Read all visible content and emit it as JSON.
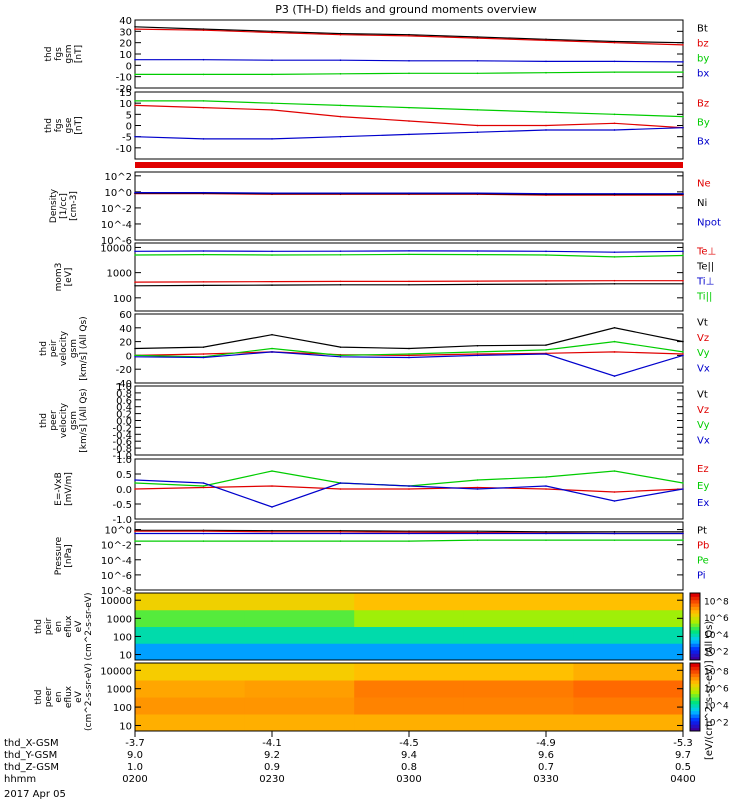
{
  "figure": {
    "title": "P3 (TH-D) fields and ground moments overview",
    "date_label": "2017 Apr 05",
    "colorbar_label": "[eV/(cm^2-s-sr-eV)] (All Qs)",
    "orbit_labels": [
      "thd_X-GSM",
      "thd_Y-GSM",
      "thd_Z-GSM",
      "hhmm"
    ],
    "orbit_values": [
      [
        "-3.7",
        "-4.1",
        "-4.5",
        "-4.9",
        "-5.3"
      ],
      [
        "9.0",
        "9.2",
        "9.4",
        "9.6",
        "9.7"
      ],
      [
        "1.0",
        "0.9",
        "0.8",
        "0.7",
        "0.5"
      ],
      [
        "0200",
        "0230",
        "0300",
        "0330",
        "0400"
      ]
    ]
  },
  "colors": {
    "black": "#000000",
    "red": "#e00000",
    "green": "#00cc00",
    "blue": "#0000cc"
  },
  "chart_data": [
    {
      "type": "line",
      "ylabel": [
        "thd",
        "fgs",
        "gsm",
        "[nT]"
      ],
      "yticks": [
        "40",
        "30",
        "20",
        "10",
        "0",
        "-10",
        "-20"
      ],
      "ylim": [
        -20,
        40
      ],
      "x": [
        "0200",
        "0215",
        "0230",
        "0245",
        "0300",
        "0315",
        "0330",
        "0345",
        "0400"
      ],
      "series": [
        {
          "name": "Bt",
          "color": "#000000",
          "values": [
            34,
            32,
            30,
            28,
            27,
            25,
            23,
            21,
            20
          ]
        },
        {
          "name": "bz",
          "color": "#e00000",
          "values": [
            32,
            31,
            29,
            27,
            26,
            24,
            22,
            20,
            18
          ]
        },
        {
          "name": "by",
          "color": "#00cc00",
          "values": [
            -8,
            -8,
            -8,
            -7.5,
            -7,
            -7,
            -6.5,
            -6,
            -6
          ]
        },
        {
          "name": "bx",
          "color": "#0000cc",
          "values": [
            5,
            5,
            4.5,
            4.5,
            4,
            4,
            3.5,
            3.5,
            3
          ]
        }
      ]
    },
    {
      "type": "line",
      "ylabel": [
        "thd",
        "fgs",
        "gse",
        "[nT]"
      ],
      "yticks": [
        "15",
        "10",
        "5",
        "0",
        "-5",
        "-10"
      ],
      "ylim": [
        -15,
        15
      ],
      "x": [
        "0200",
        "0215",
        "0230",
        "0245",
        "0300",
        "0315",
        "0330",
        "0345",
        "0400"
      ],
      "series": [
        {
          "name": "Bz",
          "color": "#e00000",
          "values": [
            9,
            8,
            7,
            4,
            2,
            0,
            0,
            1,
            -1
          ]
        },
        {
          "name": "By",
          "color": "#00cc00",
          "values": [
            11,
            11,
            10,
            9,
            8,
            7,
            6,
            5,
            4
          ]
        },
        {
          "name": "Bx",
          "color": "#0000cc",
          "values": [
            -5,
            -6,
            -6,
            -5,
            -4,
            -3,
            -2,
            -2,
            -1
          ]
        }
      ]
    },
    {
      "type": "line",
      "ylabel": [
        "Density",
        "[1/cc]",
        "[cm-3]"
      ],
      "yticks": [
        "10^2",
        "10^0",
        "10^-2",
        "10^-4",
        "10^-6"
      ],
      "yscale": "log",
      "ylim": [
        1e-06,
        300
      ],
      "x": [
        "0200",
        "0215",
        "0230",
        "0245",
        "0300",
        "0315",
        "0330",
        "0345",
        "0400"
      ],
      "series": [
        {
          "name": "Ne",
          "color": "#e00000",
          "values": [
            0.6,
            0.6,
            0.5,
            0.5,
            0.5,
            0.5,
            0.4,
            0.4,
            0.4
          ]
        },
        {
          "name": "Ni",
          "color": "#000000",
          "values": [
            0.7,
            0.7,
            0.6,
            0.6,
            0.6,
            0.6,
            0.5,
            0.5,
            0.5
          ]
        },
        {
          "name": "Npot",
          "color": "#0000cc",
          "values": [
            0.8,
            0.8,
            0.7,
            0.7,
            0.7,
            0.7,
            0.6,
            0.6,
            0.6
          ]
        }
      ]
    },
    {
      "type": "line",
      "ylabel": [
        "mom3",
        "[eV]"
      ],
      "yticks": [
        "10000",
        "1000",
        "100"
      ],
      "yscale": "log",
      "ylim": [
        30,
        15000
      ],
      "x": [
        "0200",
        "0215",
        "0230",
        "0245",
        "0300",
        "0315",
        "0330",
        "0345",
        "0400"
      ],
      "series": [
        {
          "name": "Te⊥",
          "color": "#e00000",
          "values": [
            420,
            430,
            440,
            450,
            450,
            460,
            470,
            480,
            480
          ]
        },
        {
          "name": "Te||",
          "color": "#000000",
          "values": [
            300,
            310,
            320,
            330,
            330,
            340,
            350,
            360,
            360
          ]
        },
        {
          "name": "Ti⊥",
          "color": "#0000cc",
          "values": [
            7000,
            7200,
            7000,
            7100,
            7300,
            7200,
            7000,
            6500,
            7000
          ]
        },
        {
          "name": "Ti||",
          "color": "#00cc00",
          "values": [
            5000,
            5200,
            5000,
            5100,
            5300,
            5200,
            5000,
            4200,
            4800
          ]
        }
      ]
    },
    {
      "type": "line",
      "ylabel": [
        "thd",
        "peir",
        "velocity",
        "gsm",
        "[km/s] (All Qs)"
      ],
      "yticks": [
        "60",
        "40",
        "20",
        "0",
        "-20",
        "-40"
      ],
      "ylim": [
        -40,
        60
      ],
      "x": [
        "0200",
        "0215",
        "0230",
        "0245",
        "0300",
        "0315",
        "0330",
        "0345",
        "0400"
      ],
      "series": [
        {
          "name": "Vt",
          "color": "#000000",
          "values": [
            10,
            12,
            30,
            12,
            10,
            14,
            15,
            40,
            20
          ]
        },
        {
          "name": "Vz",
          "color": "#e00000",
          "values": [
            0,
            2,
            5,
            1,
            0,
            2,
            3,
            5,
            2
          ]
        },
        {
          "name": "Vy",
          "color": "#00cc00",
          "values": [
            0,
            -2,
            10,
            0,
            2,
            5,
            8,
            20,
            5
          ]
        },
        {
          "name": "Vx",
          "color": "#0000cc",
          "values": [
            -2,
            -3,
            5,
            -2,
            -3,
            0,
            2,
            -30,
            0
          ]
        }
      ]
    },
    {
      "type": "line",
      "ylabel": [
        "thd",
        "peer",
        "velocity",
        "gsm",
        "[km/s] (All Qs)"
      ],
      "yticks": [
        "1.0",
        "0.8",
        "0.6",
        "0.4",
        "0.2",
        "0.0",
        "-0.2",
        "-0.4",
        "-0.6",
        "-0.8",
        "-1.0"
      ],
      "ylim": [
        -1,
        1
      ],
      "x": [],
      "series": [
        {
          "name": "Vt",
          "color": "#000000",
          "values": []
        },
        {
          "name": "Vz",
          "color": "#e00000",
          "values": []
        },
        {
          "name": "Vy",
          "color": "#00cc00",
          "values": []
        },
        {
          "name": "Vx",
          "color": "#0000cc",
          "values": []
        }
      ]
    },
    {
      "type": "line",
      "ylabel": [
        "E=-VxB",
        "[mV/m]"
      ],
      "yticks": [
        "1.0",
        "0.5",
        "0.0",
        "-0.5",
        "-1.0"
      ],
      "ylim": [
        -1,
        1
      ],
      "x": [
        "0200",
        "0215",
        "0230",
        "0245",
        "0300",
        "0315",
        "0330",
        "0345",
        "0400"
      ],
      "series": [
        {
          "name": "Ez",
          "color": "#e00000",
          "values": [
            0,
            0.05,
            0.1,
            0,
            0,
            0.05,
            0,
            -0.1,
            0
          ]
        },
        {
          "name": "Ey",
          "color": "#00cc00",
          "values": [
            0.2,
            0.1,
            0.6,
            0.2,
            0.1,
            0.3,
            0.4,
            0.6,
            0.2
          ]
        },
        {
          "name": "Ex",
          "color": "#0000cc",
          "values": [
            0.3,
            0.2,
            -0.6,
            0.2,
            0.1,
            0,
            0.1,
            -0.4,
            0
          ]
        }
      ]
    },
    {
      "type": "line",
      "ylabel": [
        "Pressure",
        "[nPa]"
      ],
      "yticks": [
        "10^0",
        "10^-2",
        "10^-4",
        "10^-6",
        "10^-8"
      ],
      "yscale": "log",
      "ylim": [
        1e-08,
        10
      ],
      "x": [
        "0200",
        "0215",
        "0230",
        "0245",
        "0300",
        "0315",
        "0330",
        "0345",
        "0400"
      ],
      "series": [
        {
          "name": "Pt",
          "color": "#000000",
          "values": [
            0.8,
            0.8,
            0.7,
            0.7,
            0.6,
            0.6,
            0.5,
            0.5,
            0.5
          ]
        },
        {
          "name": "Pb",
          "color": "#e00000",
          "values": [
            0.6,
            0.6,
            0.5,
            0.5,
            0.45,
            0.4,
            0.35,
            0.3,
            0.3
          ]
        },
        {
          "name": "Pe",
          "color": "#00cc00",
          "values": [
            0.03,
            0.03,
            0.03,
            0.03,
            0.03,
            0.04,
            0.04,
            0.04,
            0.04
          ]
        },
        {
          "name": "Pi",
          "color": "#0000cc",
          "values": [
            0.3,
            0.3,
            0.3,
            0.3,
            0.3,
            0.3,
            0.3,
            0.3,
            0.3
          ]
        }
      ]
    },
    {
      "type": "heatmap",
      "ylabel": [
        "thd",
        "peir",
        "en",
        "eflux",
        "eV",
        "(cm^2-s-sr-eV)"
      ],
      "yticks": [
        "10000",
        "1000",
        "100",
        "10"
      ],
      "yscale": "log",
      "ylim": [
        5,
        25000
      ],
      "colorbar_ticks": [
        "10^8",
        "10^6",
        "10^4",
        "10^2"
      ],
      "x": [
        "0200",
        "0230",
        "0300",
        "0330",
        "0400"
      ],
      "y": [
        10,
        100,
        1000,
        10000
      ],
      "z_log": [
        [
          3,
          3,
          3,
          3,
          3
        ],
        [
          4,
          4,
          4,
          4,
          4
        ],
        [
          5,
          5,
          5.5,
          5.5,
          5.5
        ],
        [
          6.5,
          6.5,
          6.8,
          6.8,
          6.8
        ]
      ]
    },
    {
      "type": "heatmap",
      "ylabel": [
        "thd",
        "peer",
        "en",
        "eflux",
        "eV",
        "(cm^2-s-sr-eV)"
      ],
      "yticks": [
        "10000",
        "1000",
        "100",
        "10"
      ],
      "yscale": "log",
      "ylim": [
        5,
        25000
      ],
      "colorbar_ticks": [
        "10^8",
        "10^6",
        "10^4",
        "10^2"
      ],
      "x": [
        "0200",
        "0230",
        "0300",
        "0330",
        "0400"
      ],
      "y": [
        10,
        100,
        1000,
        10000
      ],
      "z_log": [
        [
          7,
          7,
          7,
          7,
          7
        ],
        [
          7.3,
          7.3,
          7.5,
          7.5,
          7.6
        ],
        [
          7.1,
          7.2,
          7.6,
          7.6,
          7.8
        ],
        [
          6.6,
          6.6,
          6.8,
          6.8,
          7
        ]
      ]
    }
  ]
}
